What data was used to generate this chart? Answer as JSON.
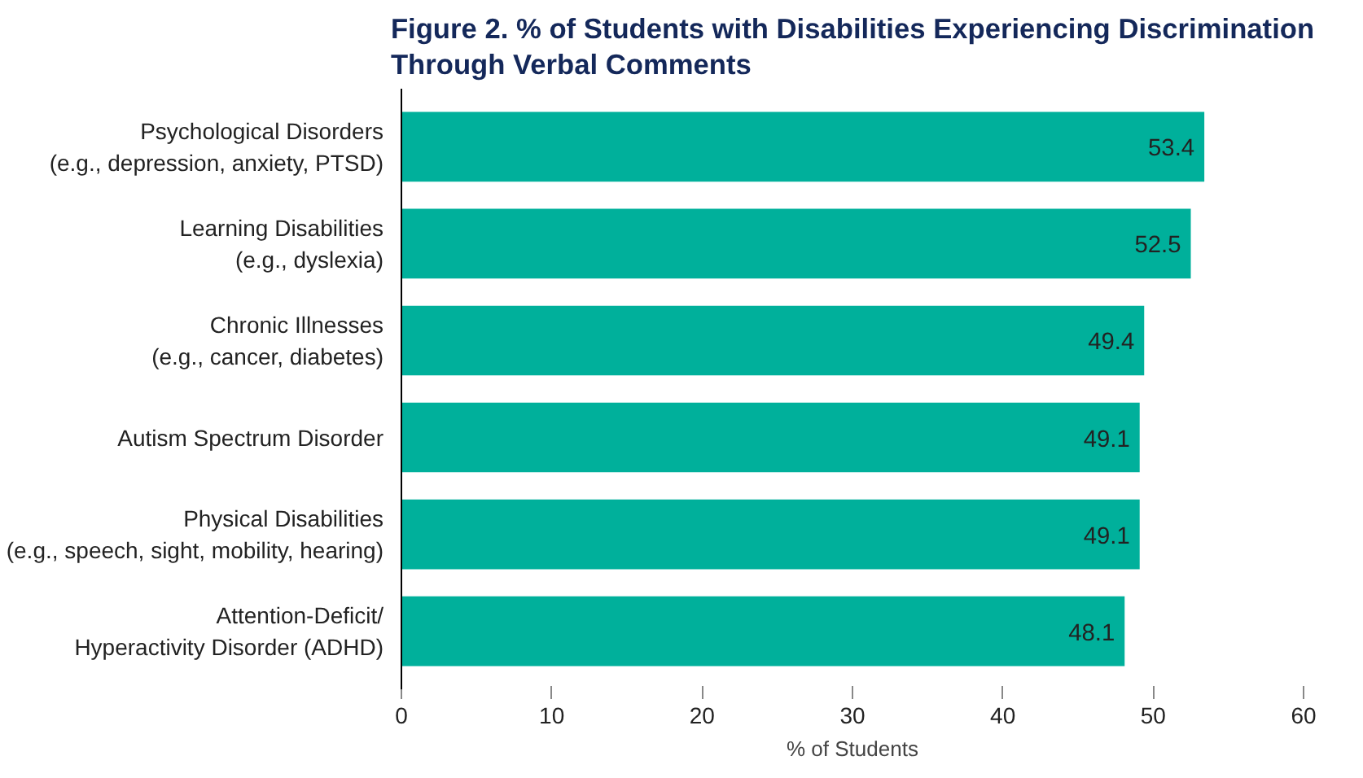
{
  "chart_data": {
    "type": "bar",
    "orientation": "horizontal",
    "title": "Figure 2. % of Students with Disabilities Experiencing Discrimination\nThrough Verbal Comments",
    "xlabel": "% of Students",
    "categories": [
      "Psychological Disorders\n(e.g., depression, anxiety, PTSD)",
      "Learning Disabilities\n(e.g., dyslexia)",
      "Chronic Illnesses\n(e.g., cancer, diabetes)",
      "Autism Spectrum Disorder",
      "Physical Disabilities\n(e.g., speech, sight, mobility, hearing)",
      "Attention-Deficit/\nHyperactivity Disorder (ADHD)"
    ],
    "values": [
      53.4,
      52.5,
      49.4,
      49.1,
      49.1,
      48.1
    ],
    "color": "#00b09b",
    "data_labels": true,
    "xlim": [
      0,
      60
    ],
    "xticks": [
      0,
      10,
      20,
      30,
      40,
      50,
      60
    ],
    "grid": false
  }
}
